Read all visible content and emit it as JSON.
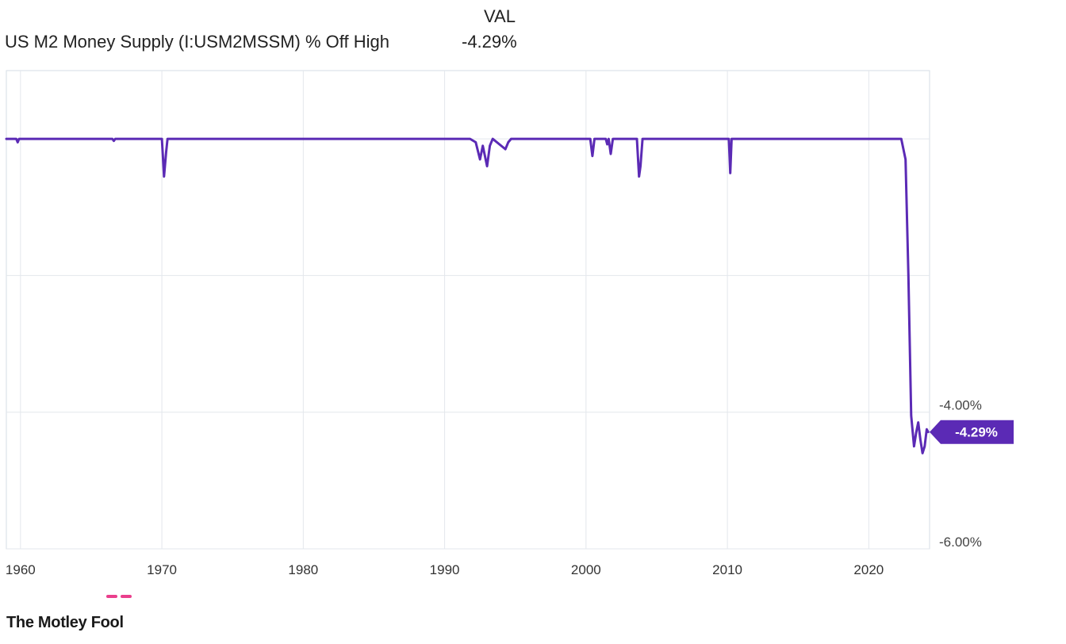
{
  "legend": {
    "header": "VAL",
    "series_name": "US M2 Money Supply (I:USM2MSSM) % Off High",
    "current_value": "-4.29%"
  },
  "brand": {
    "name": "The Motley Fool",
    "accent_color": "#ea3f8c"
  },
  "chart_data": {
    "type": "line",
    "title": "US M2 Money Supply (I:USM2MSSM) % Off High",
    "xlabel": "",
    "ylabel": "",
    "xlim": [
      1959.0,
      2024.3
    ],
    "ylim": [
      -6.0,
      0.0
    ],
    "x_tick_labels": [
      "1960",
      "1970",
      "1980",
      "1990",
      "2000",
      "2010",
      "2020"
    ],
    "x_ticks": [
      1960,
      1970,
      1980,
      1990,
      2000,
      2010,
      2020
    ],
    "y_tick_labels": [
      "-4.00%",
      "-6.00%"
    ],
    "y_ticks": [
      -4.0,
      -6.0
    ],
    "y_gridlines": [
      0.0,
      -2.0,
      -4.0,
      -6.0
    ],
    "grid": true,
    "line_color": "#5b2ab5",
    "current_label": "-4.29%",
    "series": [
      {
        "x": [
          1959.0,
          1959.7,
          1959.8,
          1959.9,
          1966.5,
          1966.6,
          1966.7,
          1970.0,
          1970.15,
          1970.3,
          1970.4,
          1991.8,
          1992.2,
          1992.5,
          1992.7,
          1993.0,
          1993.2,
          1993.4,
          1994.3,
          1994.5,
          1994.7,
          1994.9,
          2000.3,
          2000.45,
          2000.6,
          2001.4,
          2001.5,
          2001.6,
          2001.75,
          2001.9,
          2003.6,
          2003.75,
          2003.85,
          2004.0,
          2010.1,
          2010.2,
          2010.3,
          2022.3,
          2022.6,
          2022.8,
          2023.0,
          2023.2,
          2023.35,
          2023.5,
          2023.65,
          2023.8,
          2023.95,
          2024.1,
          2024.2
        ],
        "y": [
          0.0,
          0.0,
          -0.05,
          0.0,
          0.0,
          -0.03,
          0.0,
          0.0,
          -0.55,
          -0.2,
          0.0,
          0.0,
          -0.05,
          -0.3,
          -0.1,
          -0.4,
          -0.1,
          0.0,
          -0.15,
          -0.05,
          0.0,
          0.0,
          0.0,
          -0.25,
          0.0,
          0.0,
          -0.08,
          0.0,
          -0.22,
          0.0,
          0.0,
          -0.55,
          -0.4,
          0.0,
          0.0,
          -0.5,
          0.0,
          0.0,
          -0.3,
          -2.0,
          -4.05,
          -4.5,
          -4.3,
          -4.15,
          -4.4,
          -4.6,
          -4.5,
          -4.25,
          -4.29
        ]
      }
    ]
  }
}
